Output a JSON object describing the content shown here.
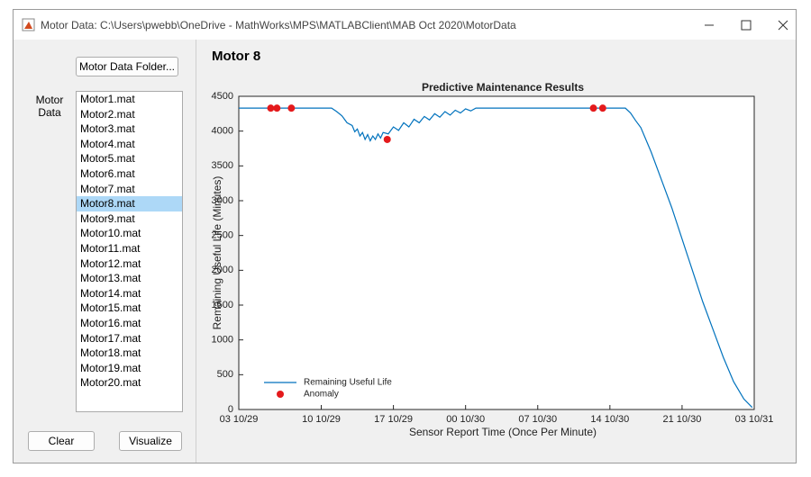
{
  "window": {
    "title": "Motor Data: C:\\Users\\pwebb\\OneDrive - MathWorks\\MPS\\MATLABClient\\MAB Oct 2020\\MotorData"
  },
  "sidebar": {
    "folder_button": "Motor Data Folder...",
    "list_label": "Motor Data",
    "files": [
      "Motor1.mat",
      "Motor2.mat",
      "Motor3.mat",
      "Motor4.mat",
      "Motor5.mat",
      "Motor6.mat",
      "Motor7.mat",
      "Motor8.mat",
      "Motor9.mat",
      "Motor10.mat",
      "Motor11.mat",
      "Motor12.mat",
      "Motor13.mat",
      "Motor14.mat",
      "Motor15.mat",
      "Motor16.mat",
      "Motor17.mat",
      "Motor18.mat",
      "Motor19.mat",
      "Motor20.mat"
    ],
    "selected_index": 7,
    "clear_button": "Clear",
    "visualize_button": "Visualize"
  },
  "panel": {
    "title": "Motor 8"
  },
  "chart_data": {
    "type": "line",
    "title": "Predictive Maintenance Results",
    "x_label": "Sensor Report Time (Once Per Minute)",
    "y_label": "Remaining Useful Life (Minutes)",
    "xlim": [
      0,
      50
    ],
    "ylim": [
      0,
      4500
    ],
    "xticks": [
      {
        "value": 0,
        "label": "03 10/29"
      },
      {
        "value": 8,
        "label": "10 10/29"
      },
      {
        "value": 15,
        "label": "17 10/29"
      },
      {
        "value": 22,
        "label": "00 10/30"
      },
      {
        "value": 29,
        "label": "07 10/30"
      },
      {
        "value": 36,
        "label": "14 10/30"
      },
      {
        "value": 43,
        "label": "21 10/30"
      },
      {
        "value": 50,
        "label": "03 10/31"
      }
    ],
    "yticks": [
      0,
      500,
      1000,
      1500,
      2000,
      2500,
      3000,
      3500,
      4000,
      4500
    ],
    "legend": "lower left",
    "series": [
      {
        "name": "Remaining Useful Life",
        "color": "#0072bd",
        "style": "line",
        "x": [
          0,
          9,
          9.5,
          10,
          10.5,
          11,
          11.25,
          11.5,
          11.75,
          12,
          12.25,
          12.5,
          12.75,
          13,
          13.25,
          13.5,
          13.75,
          14,
          14.5,
          15,
          15.5,
          16,
          16.5,
          17,
          17.5,
          18,
          18.5,
          19,
          19.5,
          20,
          20.5,
          21,
          21.5,
          22,
          22.5,
          23,
          23.5,
          37.5,
          38,
          38.5,
          39,
          40,
          41,
          42,
          43,
          44,
          45,
          46,
          47,
          48,
          49,
          49.8
        ],
        "values": [
          4330,
          4330,
          4280,
          4220,
          4120,
          4080,
          3990,
          4030,
          3930,
          3980,
          3880,
          3950,
          3860,
          3930,
          3880,
          3960,
          3900,
          3980,
          3960,
          4060,
          4010,
          4120,
          4060,
          4170,
          4120,
          4210,
          4160,
          4250,
          4200,
          4280,
          4230,
          4300,
          4260,
          4320,
          4290,
          4330,
          4330,
          4330,
          4260,
          4150,
          4050,
          3700,
          3300,
          2900,
          2450,
          2000,
          1550,
          1150,
          750,
          400,
          150,
          30
        ]
      },
      {
        "name": "Anomaly",
        "color": "#e41a1c",
        "style": "markers",
        "x": [
          3.1,
          3.7,
          5.1,
          14.4,
          34.4,
          35.3
        ],
        "values": [
          4330,
          4330,
          4330,
          3880,
          4330,
          4330
        ]
      }
    ]
  }
}
